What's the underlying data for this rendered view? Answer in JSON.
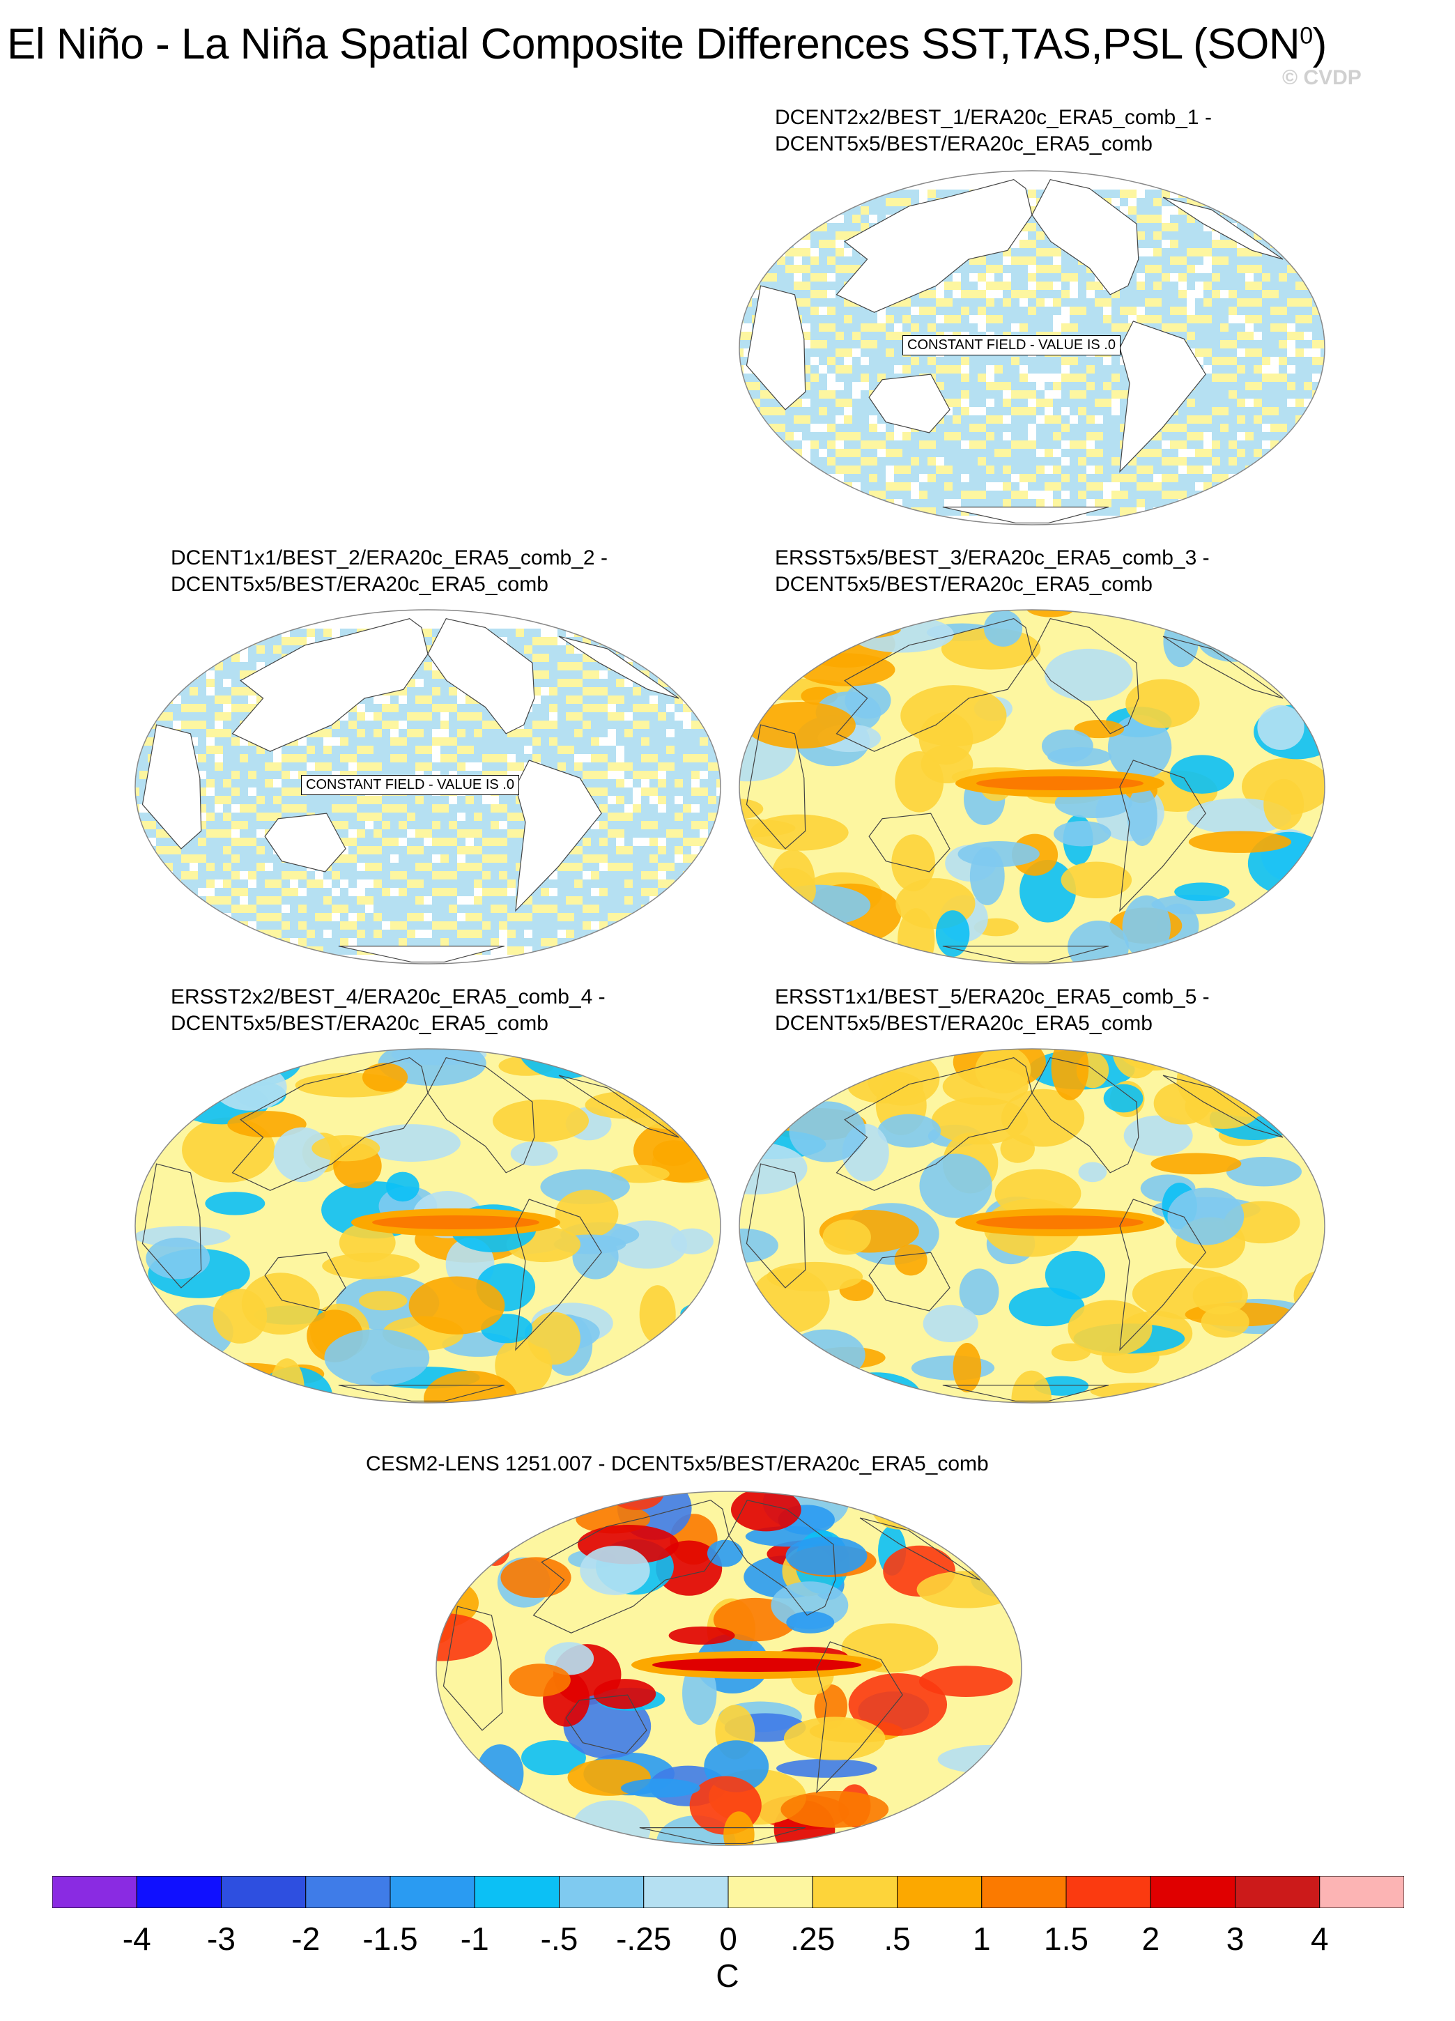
{
  "header": {
    "title": "El Niño - La Niña Spatial Composite Differences SST,TAS,PSL (SON",
    "title_sup": "0",
    "title_end": ")",
    "watermark": "© CVDP"
  },
  "panels": [
    {
      "id": "p1",
      "line1": "DCENT2x2/BEST_1/ERA20c_ERA5_comb_1 -",
      "line2": "DCENT5x5/BEST/ERA20c_ERA5_comb",
      "constant_label": "CONSTANT FIELD - VALUE IS .0",
      "field": "constant"
    },
    {
      "id": "p2",
      "line1": "DCENT1x1/BEST_2/ERA20c_ERA5_comb_2 -",
      "line2": "DCENT5x5/BEST/ERA20c_ERA5_comb",
      "constant_label": "CONSTANT FIELD - VALUE IS .0",
      "field": "constant"
    },
    {
      "id": "p3",
      "line1": "ERSST5x5/BEST_3/ERA20c_ERA5_comb_3 -",
      "line2": "DCENT5x5/BEST/ERA20c_ERA5_comb",
      "constant_label": "",
      "field": "anomaly"
    },
    {
      "id": "p4",
      "line1": "ERSST2x2/BEST_4/ERA20c_ERA5_comb_4 -",
      "line2": "DCENT5x5/BEST/ERA20c_ERA5_comb",
      "constant_label": "",
      "field": "anomaly"
    },
    {
      "id": "p5",
      "line1": "ERSST1x1/BEST_5/ERA20c_ERA5_comb_5 -",
      "line2": "DCENT5x5/BEST/ERA20c_ERA5_comb",
      "constant_label": "",
      "field": "anomaly"
    },
    {
      "id": "p6",
      "line1": "CESM2-LENS 1251.007 - DCENT5x5/BEST/ERA20c_ERA5_comb",
      "line2": "",
      "constant_label": "",
      "field": "strong"
    }
  ],
  "colorbar": {
    "unit": "C",
    "labels": [
      "-4",
      "-3",
      "-2",
      "-1.5",
      "-1",
      "-.5",
      "-.25",
      "0",
      ".25",
      ".5",
      "1",
      "1.5",
      "2",
      "3",
      "4"
    ],
    "colors": [
      "#8a2be2",
      "#1010ff",
      "#2e4fe0",
      "#3f7ce8",
      "#2a9bf2",
      "#0cc0f5",
      "#7fcaf0",
      "#b5e0f2",
      "#fdf6a0",
      "#fdd43a",
      "#fca800",
      "#fb7a00",
      "#fb3a10",
      "#e00000",
      "#cc1a1a",
      "#fcb4b4"
    ]
  },
  "chart_data": {
    "type": "heatmap",
    "title": "El Niño - La Niña Spatial Composite Differences SST,TAS,PSL (SON0)",
    "colorbar_unit": "C",
    "levels": [
      -4,
      -3,
      -2,
      -1.5,
      -1,
      -0.5,
      -0.25,
      0,
      0.25,
      0.5,
      1,
      1.5,
      2,
      3,
      4
    ],
    "panels": [
      {
        "name": "DCENT2x2/BEST_1/ERA20c_ERA5_comb_1 - DCENT5x5/BEST/ERA20c_ERA5_comb",
        "constant_value": 0
      },
      {
        "name": "DCENT1x1/BEST_2/ERA20c_ERA5_comb_2 - DCENT5x5/BEST/ERA20c_ERA5_comb",
        "constant_value": 0
      },
      {
        "name": "ERSST5x5/BEST_3/ERA20c_ERA5_comb_3 - DCENT5x5/BEST/ERA20c_ERA5_comb",
        "equatorial_pacific_max": 1
      },
      {
        "name": "ERSST2x2/BEST_4/ERA20c_ERA5_comb_4 - DCENT5x5/BEST/ERA20c_ERA5_comb",
        "equatorial_pacific_max": 1
      },
      {
        "name": "ERSST1x1/BEST_5/ERA20c_ERA5_comb_5 - DCENT5x5/BEST/ERA20c_ERA5_comb",
        "equatorial_pacific_max": 1
      },
      {
        "name": "CESM2-LENS 1251.007 - DCENT5x5/BEST/ERA20c_ERA5_comb",
        "equatorial_pacific_max": 2
      }
    ]
  }
}
